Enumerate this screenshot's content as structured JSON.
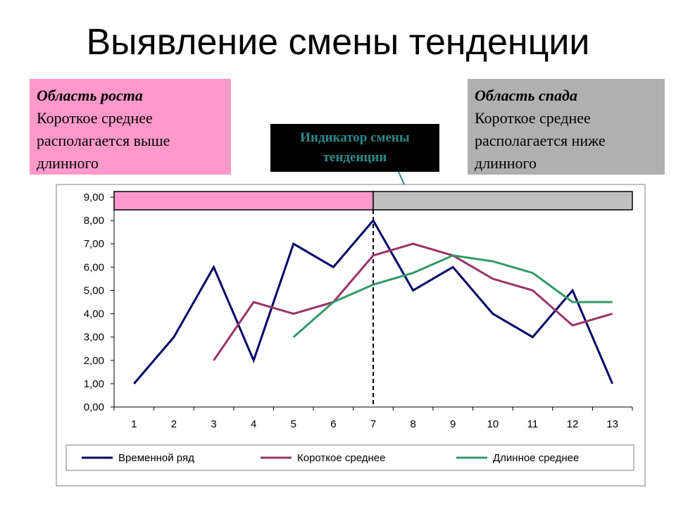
{
  "page": {
    "title": "Выявление смены тенденции"
  },
  "callouts": {
    "growth": {
      "head": "Область роста",
      "line1": "Короткое среднее",
      "line2": "располагается выше",
      "line3": "длинного"
    },
    "decline": {
      "head": "Область спада",
      "line1": "Короткое среднее",
      "line2": "располагается ниже",
      "line3": "длинного"
    },
    "indicator": {
      "line1": "Индикатор смены",
      "line2": "тенденции"
    }
  },
  "colors": {
    "growth_zone": "#ff99cc",
    "decline_zone": "#c0c0c0",
    "series_time": "#000066",
    "series_short": "#993366",
    "series_long": "#339966",
    "indicator_text": "#2e8b8b"
  },
  "chart_data": {
    "type": "line",
    "title": "",
    "xlabel": "",
    "ylabel": "",
    "x": [
      "1",
      "2",
      "3",
      "4",
      "5",
      "6",
      "7",
      "8",
      "9",
      "10",
      "11",
      "12",
      "13"
    ],
    "ylim": [
      0,
      9
    ],
    "yticks": [
      "0,00",
      "1,00",
      "2,00",
      "3,00",
      "4,00",
      "5,00",
      "6,00",
      "7,00",
      "8,00",
      "9,00"
    ],
    "trend_change_at": "7",
    "grid": false,
    "legend_position": "bottom",
    "series": [
      {
        "name": "Временной ряд",
        "values": [
          1,
          3,
          6,
          2,
          7,
          6,
          8,
          5,
          6,
          4,
          3,
          5,
          1
        ]
      },
      {
        "name": "Короткое среднее",
        "values": [
          null,
          null,
          2,
          4.5,
          4,
          4.5,
          6.5,
          7,
          6.5,
          5.5,
          5,
          3.5,
          4
        ]
      },
      {
        "name": "Длинное среднее",
        "values": [
          null,
          null,
          null,
          null,
          3,
          4.5,
          5.25,
          5.75,
          6.5,
          6.25,
          5.75,
          4.5,
          4.5
        ]
      }
    ]
  }
}
